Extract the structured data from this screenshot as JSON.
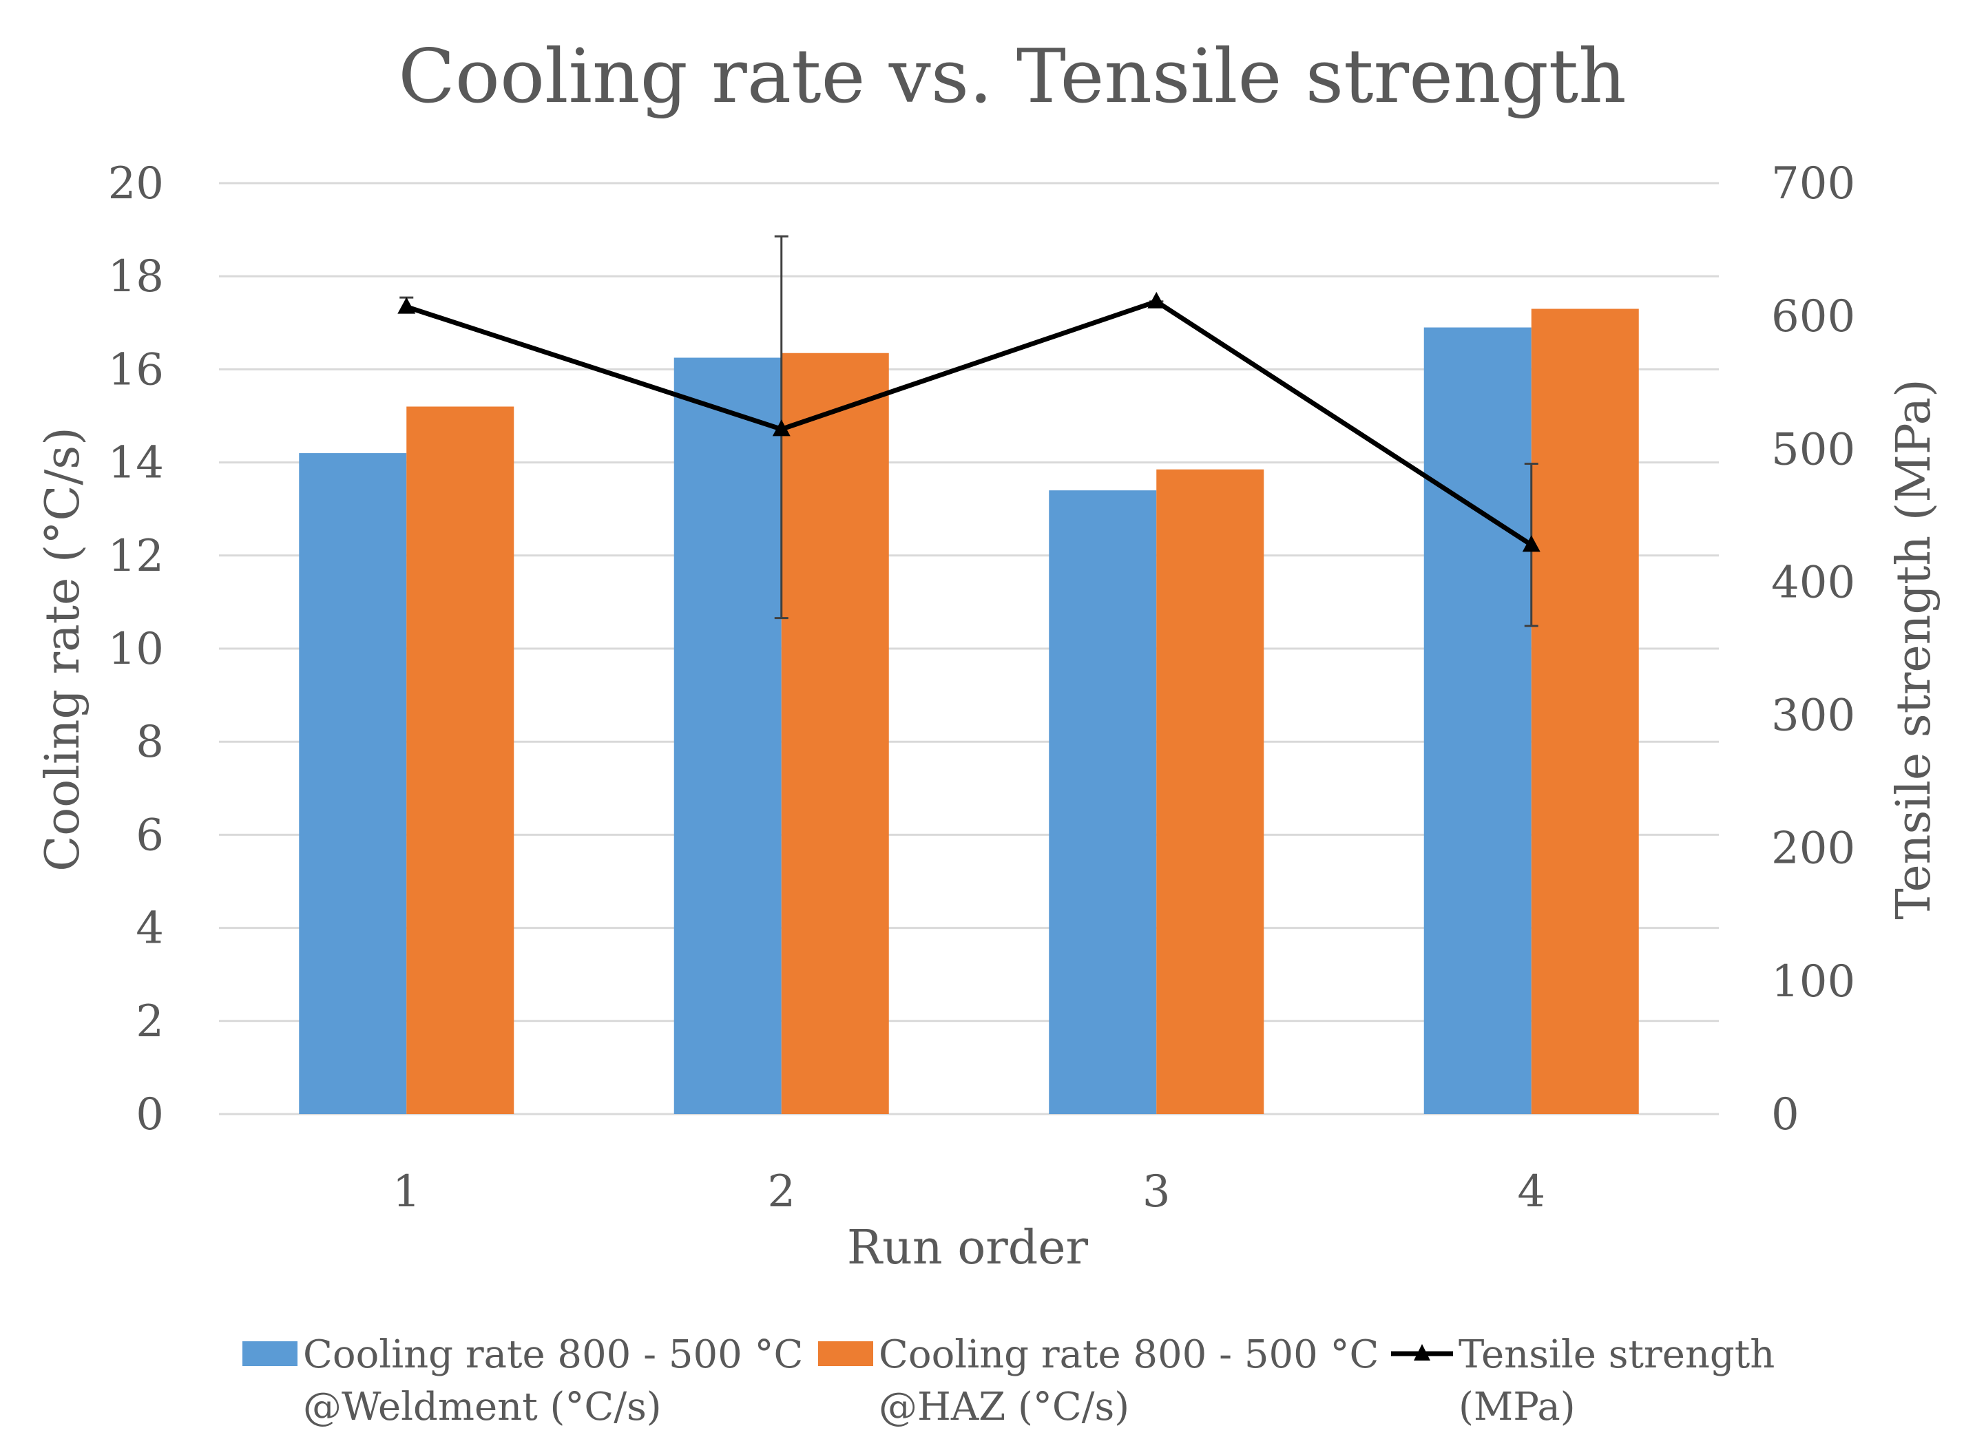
{
  "chart_data": {
    "type": "bar",
    "title": "Cooling rate vs. Tensile strength",
    "xlabel": "Run order",
    "ylabel": "Cooling rate (°C/s)",
    "y2label": "Tensile strength (MPa)",
    "categories": [
      "1",
      "2",
      "3",
      "4"
    ],
    "ylim": [
      0,
      20
    ],
    "yticks": [
      0,
      2,
      4,
      6,
      8,
      10,
      12,
      14,
      16,
      18,
      20
    ],
    "y2lim": [
      0,
      700
    ],
    "y2ticks": [
      0,
      100,
      200,
      300,
      400,
      500,
      600,
      700
    ],
    "grid": true,
    "legend_position": "bottom",
    "series": [
      {
        "name": "Cooling rate 800 - 500 °C @Weldment (°C/s)",
        "legend_lines": [
          "Cooling rate 800 - 500 °C",
          "@Weldment (°C/s)"
        ],
        "type": "bar",
        "axis": "left",
        "color": "#5b9bd5",
        "values": [
          14.2,
          16.25,
          13.4,
          16.9
        ]
      },
      {
        "name": "Cooling rate 800 - 500 °C @HAZ (°C/s)",
        "legend_lines": [
          "Cooling rate 800 - 500 °C",
          "@HAZ (°C/s)"
        ],
        "type": "bar",
        "axis": "left",
        "color": "#ed7d31",
        "values": [
          15.2,
          16.35,
          13.85,
          17.3
        ]
      },
      {
        "name": "Tensile strength (MPa)",
        "legend_lines": [
          "Tensile strength",
          "(MPa)"
        ],
        "type": "line",
        "axis": "right",
        "color": "#000000",
        "marker": "triangle",
        "values": [
          607,
          515,
          611,
          428
        ],
        "error": [
          [
            603,
            614
          ],
          [
            373,
            660
          ],
          [
            611,
            611
          ],
          [
            367,
            489
          ]
        ]
      }
    ]
  }
}
